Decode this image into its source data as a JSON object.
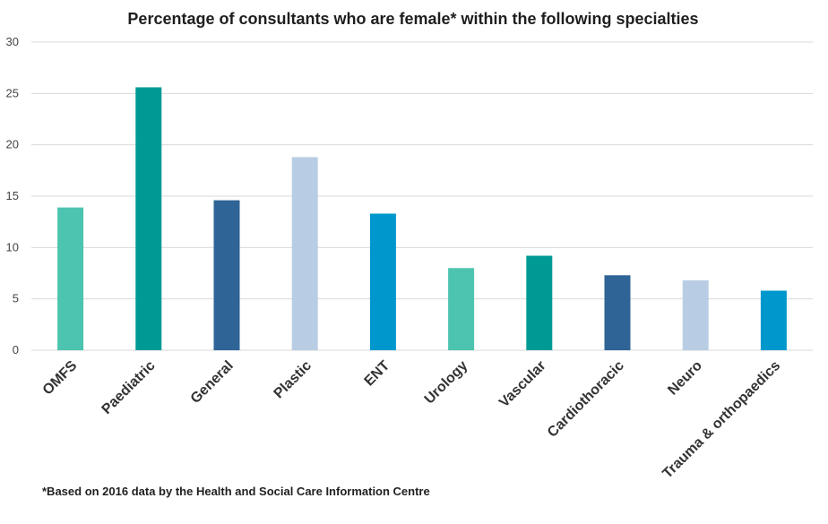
{
  "chart_data": {
    "type": "bar",
    "title": "Percentage of consultants who are female* within the following specialties",
    "categories": [
      "OMFS",
      "Paediatric",
      "General",
      "Plastic",
      "ENT",
      "Urology",
      "Vascular",
      "Cardiothoracic",
      "Neuro",
      "Trauma & orthopaedics"
    ],
    "values": [
      13.9,
      25.6,
      14.6,
      18.8,
      13.3,
      8.0,
      9.2,
      7.3,
      6.8,
      5.8
    ],
    "colors": [
      "#4dc4b0",
      "#009a94",
      "#2e6496",
      "#b8cde3",
      "#0098cc",
      "#4dc4b0",
      "#009a94",
      "#2e6496",
      "#b8cde3",
      "#0098cc"
    ],
    "ylim": [
      0,
      30
    ],
    "yticks": [
      0,
      5,
      10,
      15,
      20,
      25,
      30
    ],
    "grid": true,
    "xlabel": "",
    "ylabel": ""
  },
  "footnote": "*Based on 2016 data by the Health and Social Care Information Centre"
}
